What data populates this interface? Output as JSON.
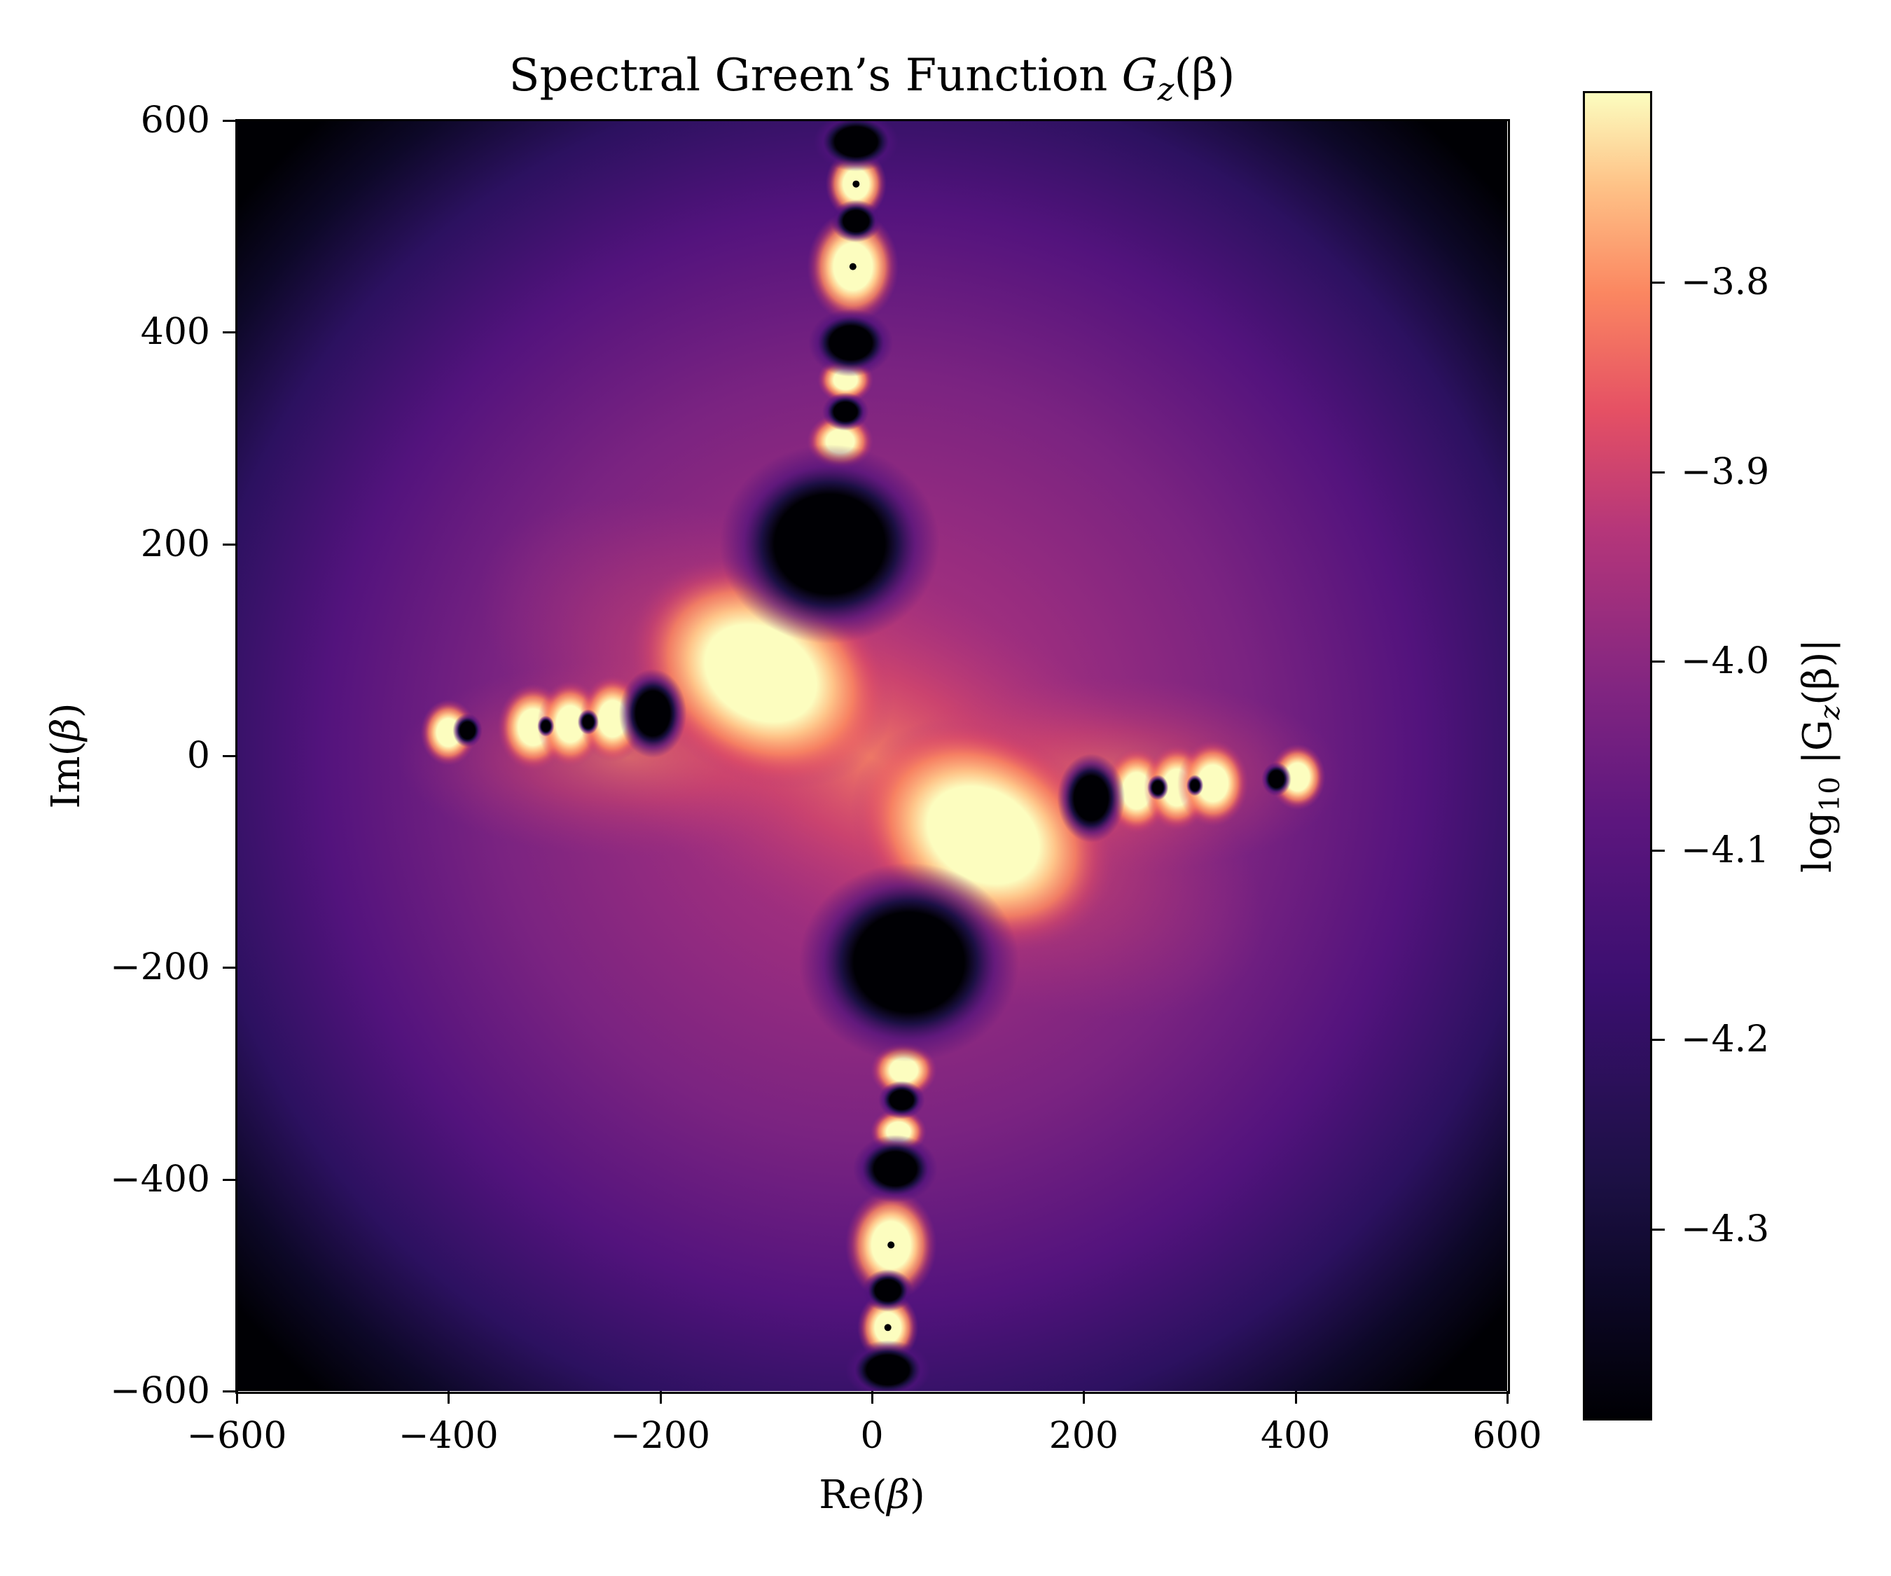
{
  "chart_data": {
    "type": "heatmap",
    "title": "Spectral Green's Function G_z(β)",
    "xlabel": "Re(β)",
    "ylabel": "Im(β)",
    "colorbar_label": "log10 |G_z(β)|",
    "colormap": "magma",
    "xlim": [
      -600,
      600
    ],
    "ylim": [
      -600,
      600
    ],
    "clim": [
      -4.4,
      -3.7
    ],
    "x_ticks": [
      -600,
      -400,
      -200,
      0,
      200,
      400,
      600
    ],
    "y_ticks": [
      600,
      400,
      200,
      0,
      -200,
      -400,
      -600
    ],
    "colorbar_ticks": [
      -3.8,
      -3.9,
      -4.0,
      -4.1,
      -4.2,
      -4.3
    ],
    "grid": false,
    "features": {
      "peaks_bright": [
        {
          "re": -105,
          "im": 78,
          "rx": 55,
          "ry": 42,
          "tilt": 30
        },
        {
          "re": 105,
          "im": -75,
          "rx": 55,
          "ry": 42,
          "tilt": 30
        },
        {
          "re": -15,
          "im": 540,
          "rx": 12,
          "ry": 14
        },
        {
          "re": -18,
          "im": 462,
          "rx": 18,
          "ry": 22
        },
        {
          "re": -25,
          "im": 355,
          "rx": 11,
          "ry": 9
        },
        {
          "re": -30,
          "im": 297,
          "rx": 13,
          "ry": 11
        },
        {
          "re": 30,
          "im": -297,
          "rx": 13,
          "ry": 11
        },
        {
          "re": 25,
          "im": -355,
          "rx": 11,
          "ry": 9
        },
        {
          "re": 18,
          "im": -462,
          "rx": 18,
          "ry": 22
        },
        {
          "re": 15,
          "im": -540,
          "rx": 12,
          "ry": 14
        },
        {
          "re": -400,
          "im": 22,
          "rx": 11,
          "ry": 13
        },
        {
          "re": -320,
          "im": 27,
          "rx": 14,
          "ry": 17
        },
        {
          "re": -285,
          "im": 30,
          "rx": 13,
          "ry": 17
        },
        {
          "re": -245,
          "im": 35,
          "rx": 13,
          "ry": 17
        },
        {
          "re": 250,
          "im": -33,
          "rx": 13,
          "ry": 17
        },
        {
          "re": 288,
          "im": -30,
          "rx": 13,
          "ry": 17
        },
        {
          "re": 322,
          "im": -26,
          "rx": 14,
          "ry": 17
        },
        {
          "re": 402,
          "im": -20,
          "rx": 11,
          "ry": 13
        }
      ],
      "zeros_dark": [
        {
          "re": -40,
          "im": 200,
          "rx": 52,
          "ry": 47
        },
        {
          "re": 35,
          "im": -195,
          "rx": 52,
          "ry": 47
        },
        {
          "re": -207,
          "im": 40,
          "rx": 16,
          "ry": 21
        },
        {
          "re": 207,
          "im": -40,
          "rx": 16,
          "ry": 21
        },
        {
          "re": -15,
          "im": 580,
          "rx": 20,
          "ry": 14
        },
        {
          "re": -15,
          "im": 505,
          "rx": 12,
          "ry": 10
        },
        {
          "re": -20,
          "im": 390,
          "rx": 20,
          "ry": 16
        },
        {
          "re": -25,
          "im": 325,
          "rx": 11,
          "ry": 9
        },
        {
          "re": 28,
          "im": -325,
          "rx": 11,
          "ry": 9
        },
        {
          "re": 22,
          "im": -390,
          "rx": 20,
          "ry": 16
        },
        {
          "re": 15,
          "im": -505,
          "rx": 12,
          "ry": 10
        },
        {
          "re": 15,
          "im": -580,
          "rx": 20,
          "ry": 14
        },
        {
          "re": -382,
          "im": 24,
          "rx": 7,
          "ry": 8
        },
        {
          "re": -308,
          "im": 28,
          "rx": 4,
          "ry": 5
        },
        {
          "re": -268,
          "im": 32,
          "rx": 5,
          "ry": 6
        },
        {
          "re": 270,
          "im": -30,
          "rx": 5,
          "ry": 6
        },
        {
          "re": 305,
          "im": -28,
          "rx": 4,
          "ry": 5
        },
        {
          "re": 382,
          "im": -22,
          "rx": 7,
          "ry": 8
        }
      ]
    }
  },
  "labels": {
    "title_text": "Spectral Green’s Function ",
    "title_math": "G",
    "title_sub": "z",
    "title_arg": "(β)",
    "xaxis": "Re(",
    "xaxis_var": "β",
    "xaxis_close": ")",
    "yaxis": "Im(",
    "yaxis_var": "β",
    "yaxis_close": ")",
    "cbar_prefix": "log",
    "cbar_sub": "10",
    "cbar_body": " |G",
    "cbar_sub2": "z",
    "cbar_arg": "(β)|"
  },
  "ticks": {
    "x": [
      "−600",
      "−400",
      "−200",
      "0",
      "200",
      "400",
      "600"
    ],
    "y": [
      "600",
      "400",
      "200",
      "0",
      "−200",
      "−400",
      "−600"
    ],
    "c": [
      "−3.8",
      "−3.9",
      "−4.0",
      "−4.1",
      "−4.2",
      "−4.3"
    ]
  },
  "colors": {
    "magma_0": "#000004",
    "magma_1": "#1c1044",
    "magma_2": "#4f127b",
    "magma_3": "#812581",
    "magma_4": "#b5367a",
    "magma_5": "#e55064",
    "magma_6": "#fb8761",
    "magma_7": "#fec287",
    "magma_8": "#fcfdbf"
  }
}
